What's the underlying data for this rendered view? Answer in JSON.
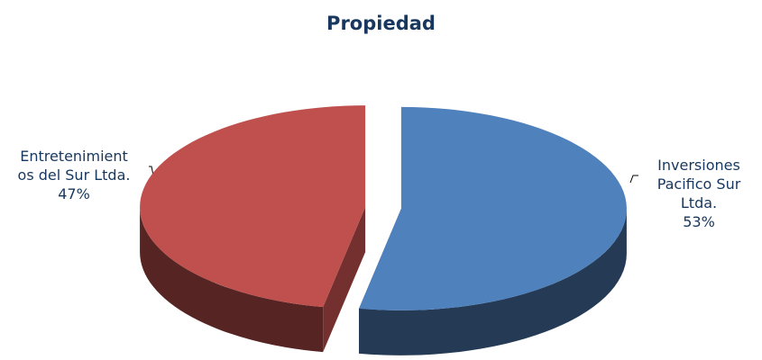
{
  "chart_data": {
    "type": "pie",
    "title": "Propiedad",
    "categories": [
      "Inversiones Pacifico Sur Ltda.",
      "Entretenimientos del Sur Ltda."
    ],
    "values": [
      53,
      47
    ],
    "value_labels": [
      "53%",
      "47%"
    ],
    "colors": [
      "#4f81bd",
      "#c0504d"
    ]
  }
}
